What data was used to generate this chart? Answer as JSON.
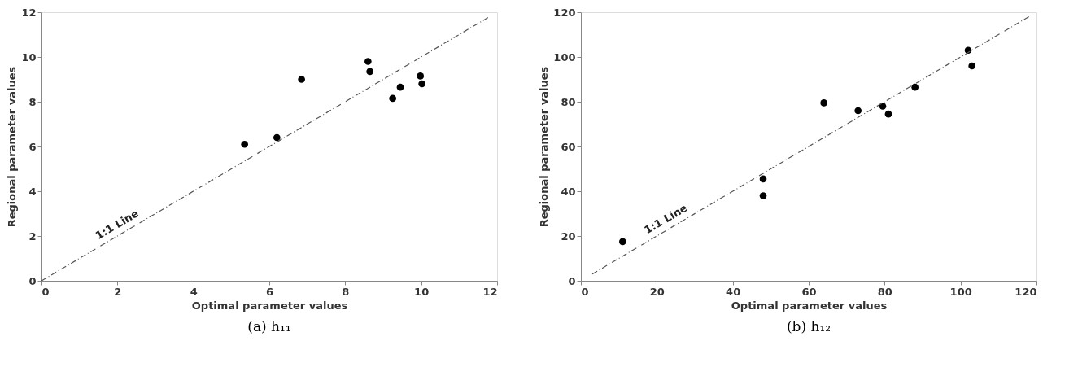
{
  "chart_data": [
    {
      "type": "scatter",
      "title": "(a) h₁₁",
      "xlabel": "Optimal parameter values",
      "ylabel": "Regional parameter values",
      "xlim": [
        0,
        12
      ],
      "ylim": [
        0,
        12
      ],
      "xticks": [
        0,
        2,
        4,
        6,
        8,
        10,
        12
      ],
      "yticks": [
        0,
        2,
        4,
        6,
        8,
        10,
        12
      ],
      "grid": false,
      "annotations": [
        "1:1 Line"
      ],
      "series": [
        {
          "marker": "circle",
          "color": "#000000",
          "x": [
            5.35,
            6.2,
            6.85,
            8.6,
            8.65,
            9.25,
            9.45,
            9.98,
            10.02
          ],
          "values": [
            6.1,
            6.4,
            9.0,
            9.8,
            9.35,
            8.15,
            8.65,
            9.15,
            8.8
          ]
        },
        {
          "type": "line",
          "marker": "none",
          "line_style": "dashed",
          "color": "#555555",
          "x": [
            0,
            11.8
          ],
          "values": [
            0,
            11.8
          ]
        }
      ]
    },
    {
      "type": "scatter",
      "title": "(b) h₁₂",
      "xlabel": "Optimal parameter values",
      "ylabel": "Regional parameter values",
      "xlim": [
        0,
        120
      ],
      "ylim": [
        0,
        120
      ],
      "xticks": [
        0,
        20,
        40,
        60,
        80,
        100,
        120
      ],
      "yticks": [
        0,
        20,
        40,
        60,
        80,
        100,
        120
      ],
      "grid": false,
      "annotations": [
        "1:1 Line"
      ],
      "series": [
        {
          "marker": "circle",
          "color": "#000000",
          "x": [
            11,
            48,
            48,
            64,
            73,
            79.5,
            81,
            88,
            102,
            103
          ],
          "values": [
            17.5,
            45.5,
            38,
            79.5,
            76,
            78,
            74.5,
            86.5,
            103,
            96
          ]
        },
        {
          "type": "line",
          "marker": "none",
          "line_style": "dashed",
          "color": "#555555",
          "x": [
            3,
            118
          ],
          "values": [
            3,
            118
          ]
        }
      ]
    }
  ]
}
